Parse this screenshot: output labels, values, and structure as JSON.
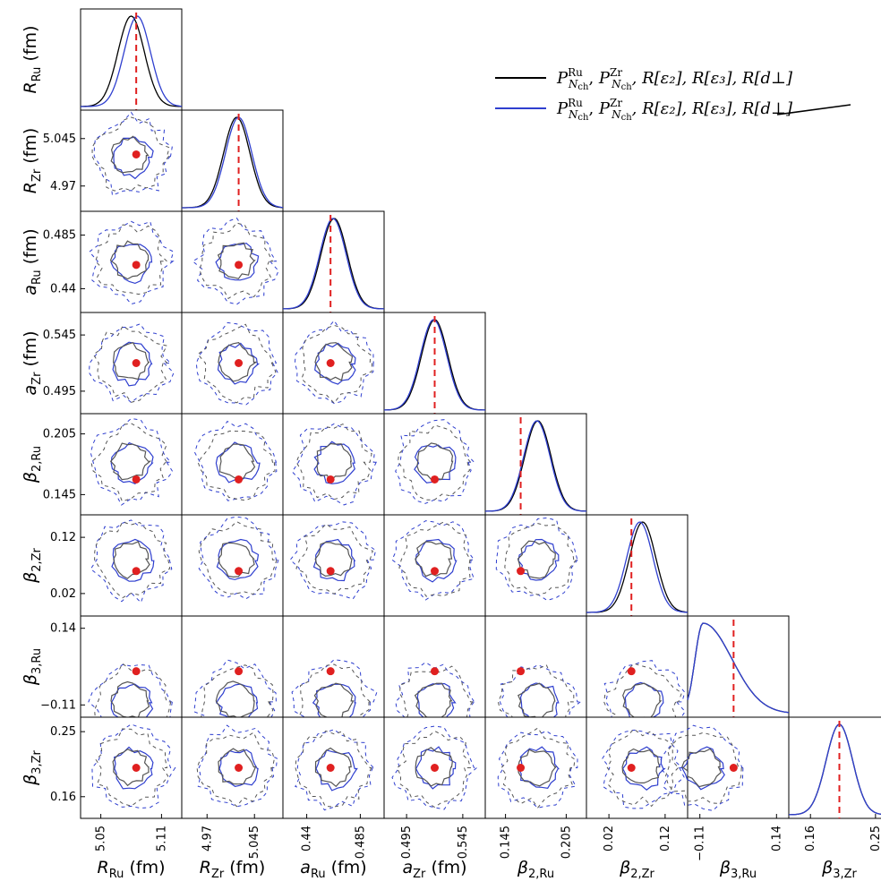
{
  "chart_data": {
    "type": "corner",
    "params": [
      {
        "label_base": "R",
        "label_sub": "Ru",
        "unit": " (fm)",
        "truth": 5.085,
        "range": [
          5.03,
          5.13
        ],
        "ticks": [
          "5.05",
          "5.11"
        ],
        "tick_values": [
          5.05,
          5.11
        ]
      },
      {
        "label_base": "R",
        "label_sub": "Zr",
        "unit": " (fm)",
        "truth": 5.02,
        "range": [
          4.93,
          5.09
        ],
        "ticks": [
          "4.97",
          "5.045"
        ],
        "tick_values": [
          4.97,
          5.045
        ]
      },
      {
        "label_base": "a",
        "label_sub": "Ru",
        "unit": " (fm)",
        "truth": 0.46,
        "range": [
          0.42,
          0.505
        ],
        "ticks": [
          "0.44",
          "0.485"
        ],
        "tick_values": [
          0.44,
          0.485
        ]
      },
      {
        "label_base": "a",
        "label_sub": "Zr",
        "unit": " (fm)",
        "truth": 0.52,
        "range": [
          0.475,
          0.565
        ],
        "ticks": [
          "0.495",
          "0.545"
        ],
        "tick_values": [
          0.495,
          0.545
        ]
      },
      {
        "label_base": "β",
        "label_sub": "2,Ru",
        "unit": "",
        "truth": 0.16,
        "range": [
          0.125,
          0.225
        ],
        "ticks": [
          "0.145",
          "0.205"
        ],
        "tick_values": [
          0.145,
          0.205
        ]
      },
      {
        "label_base": "β",
        "label_sub": "2,Zr",
        "unit": "",
        "truth": 0.06,
        "range": [
          -0.02,
          0.16
        ],
        "ticks": [
          "0.02",
          "0.12"
        ],
        "tick_values": [
          0.02,
          0.12
        ]
      },
      {
        "label_base": "β",
        "label_sub": "3,Ru",
        "unit": "",
        "truth": 0.0,
        "range": [
          -0.15,
          0.18
        ],
        "ticks": [
          "−0.11",
          "0.14"
        ],
        "tick_values": [
          -0.11,
          0.14
        ]
      },
      {
        "label_base": "β",
        "label_sub": "3,Zr",
        "unit": "",
        "truth": 0.2,
        "range": [
          0.13,
          0.27
        ],
        "ticks": [
          "0.16",
          "0.25"
        ],
        "tick_values": [
          0.16,
          0.25
        ]
      }
    ],
    "series": [
      {
        "name": "P_Nch^Ru, P_Nch^Zr, R[ε2], R[ε3], R[d⊥]",
        "color": "#000000",
        "peaks": [
          5.08,
          5.017,
          0.463,
          0.52,
          0.177,
          0.08,
          -0.1,
          0.2
        ]
      },
      {
        "name": "P_Nch^Ru, P_Nch^Zr, R[ε2], R[ε3], R[d⊥] (excluded)",
        "color": "#2f3fcf",
        "peaks": [
          5.086,
          5.02,
          0.462,
          0.519,
          0.176,
          0.075,
          -0.1,
          0.2
        ]
      }
    ],
    "truth_color": "#e02020",
    "legend": {
      "placement": "top-right",
      "entries": [
        {
          "pRu": "P",
          "subRu": "N",
          "subRu2": "ch",
          "supRu": "Ru",
          "pZr": "P",
          "supZr": "Zr",
          "rest": ", R[ε₂], R[ε₃], ",
          "last": "R[d⊥]",
          "struck": false,
          "color": "#000000"
        },
        {
          "pRu": "P",
          "subRu": "N",
          "subRu2": "ch",
          "supRu": "Ru",
          "pZr": "P",
          "supZr": "Zr",
          "rest": ", R[ε₂], R[ε₃], ",
          "last": "R[d⊥]",
          "struck": true,
          "color": "#2f3fcf"
        }
      ]
    }
  }
}
